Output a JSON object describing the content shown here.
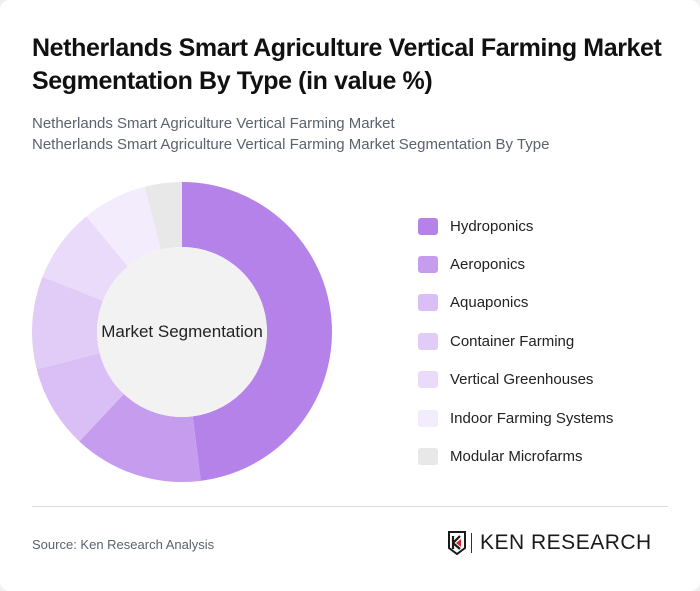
{
  "header": {
    "title": "Netherlands Smart Agriculture Vertical Farming Market Segmentation By Type (in value %)",
    "subtitle_line1": "Netherlands Smart Agriculture Vertical Farming Market",
    "subtitle_line2": "Netherlands Smart Agriculture Vertical Farming Market Segmentation By Type"
  },
  "chart": {
    "center_label": "Market Segmentation"
  },
  "legend": [
    {
      "label": "Hydroponics",
      "color": "#b582ea"
    },
    {
      "label": "Aeroponics",
      "color": "#c69cee"
    },
    {
      "label": "Aquaponics",
      "color": "#d9bff5"
    },
    {
      "label": "Container Farming",
      "color": "#e0ccf6"
    },
    {
      "label": "Vertical Greenhouses",
      "color": "#e9dbf9"
    },
    {
      "label": "Indoor Farming Systems",
      "color": "#f3ecfc"
    },
    {
      "label": "Modular Microfarms",
      "color": "#e8e8e8"
    }
  ],
  "footer": {
    "source": "Source: Ken Research Analysis",
    "logo_text": "KEN RESEARCH"
  },
  "chart_data": {
    "type": "pie",
    "variant": "donut",
    "title": "Netherlands Smart Agriculture Vertical Farming Market Segmentation By Type (in value %)",
    "center_label": "Market Segmentation",
    "categories": [
      "Hydroponics",
      "Aeroponics",
      "Aquaponics",
      "Container Farming",
      "Vertical Greenhouses",
      "Indoor Farming Systems",
      "Modular Microfarms"
    ],
    "values": [
      48,
      14,
      9,
      10,
      8,
      7,
      4
    ],
    "colors": [
      "#b582ea",
      "#c69cee",
      "#d9bff5",
      "#e0ccf6",
      "#e9dbf9",
      "#f3ecfc",
      "#e8e8e8"
    ],
    "legend_position": "right",
    "unit": "%"
  }
}
